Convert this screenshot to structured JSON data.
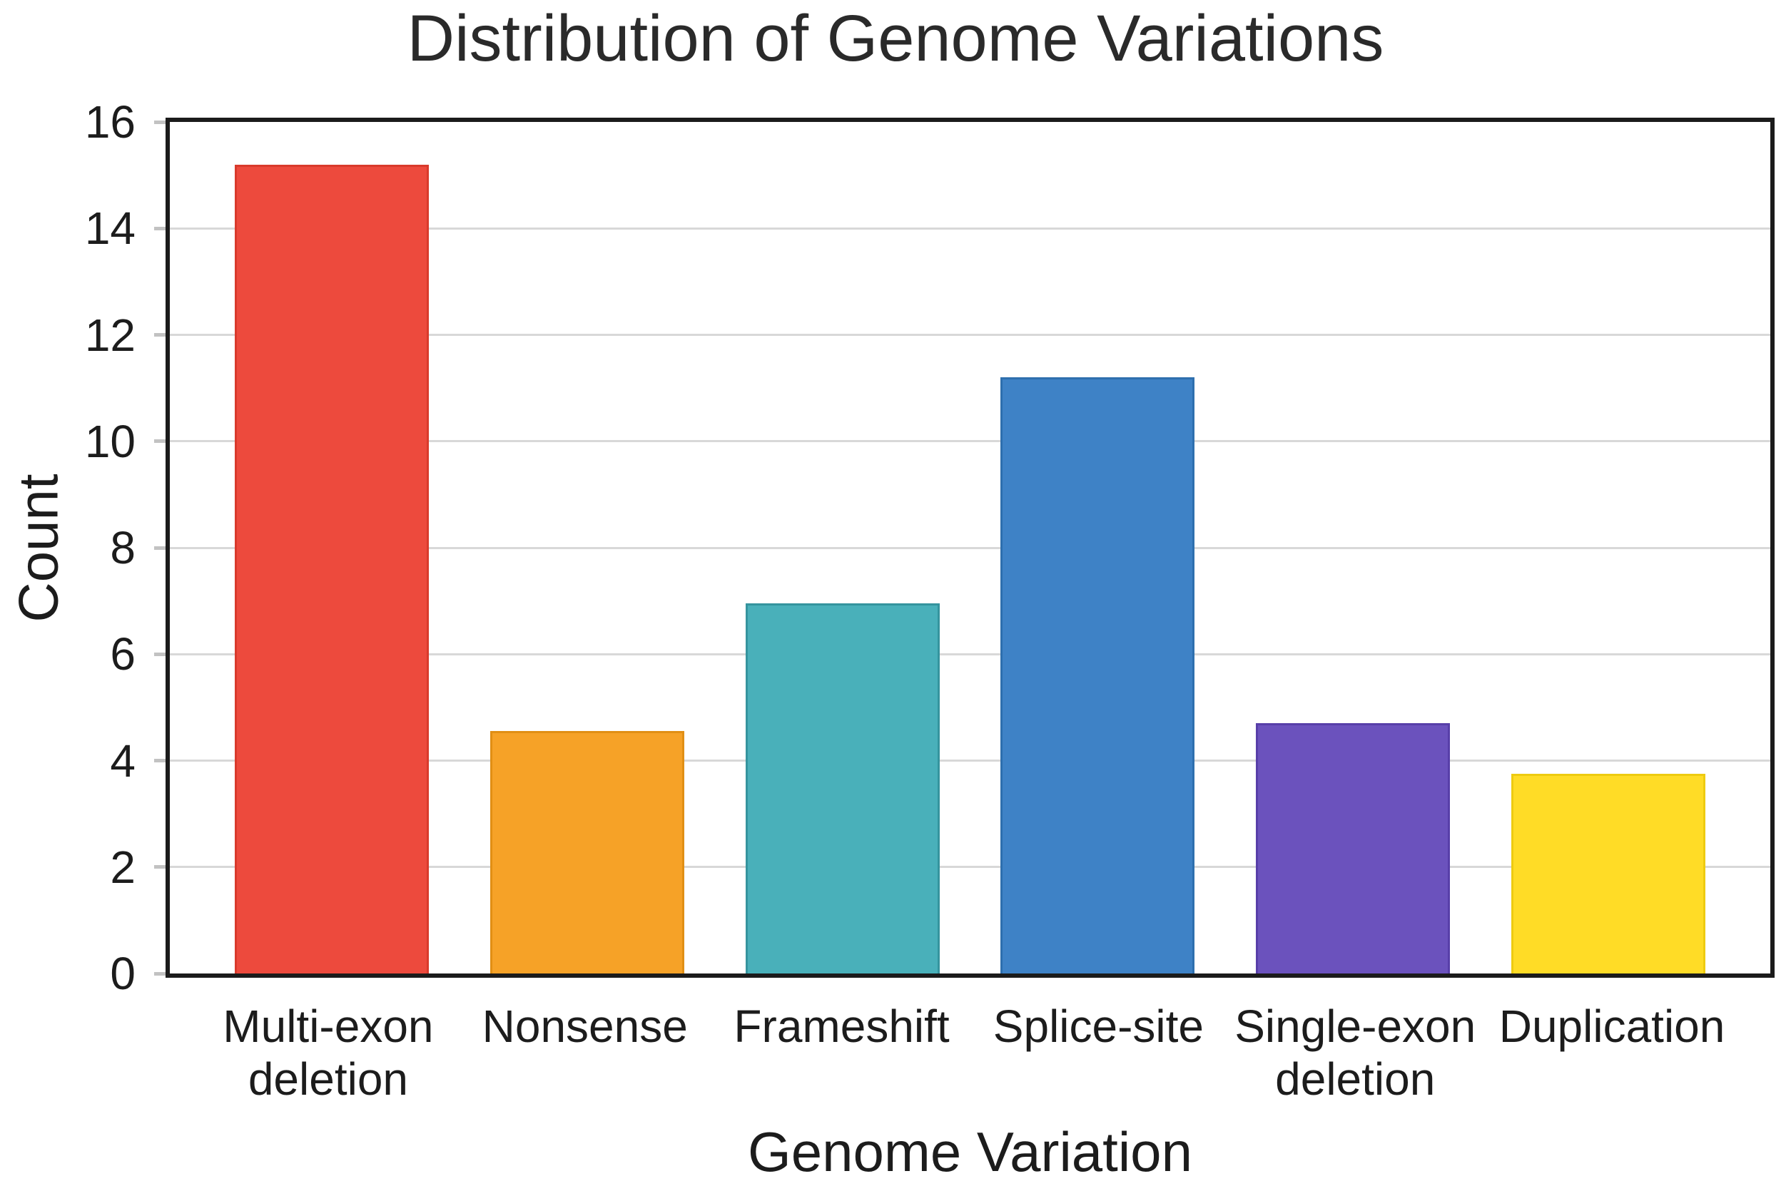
{
  "title": "Distribution of Genome Variations",
  "y_axis": {
    "label": "Count",
    "ticks": [
      0,
      2,
      4,
      6,
      8,
      10,
      12,
      14,
      16
    ],
    "grid_values": [
      2,
      4,
      6,
      8,
      10,
      12,
      14
    ],
    "max": 16
  },
  "x_axis": {
    "label": "Genome Variation"
  },
  "chart_data": {
    "type": "bar",
    "title": "Distribution of Genome Variations",
    "xlabel": "Genome Variation",
    "ylabel": "Count",
    "ylim": [
      0,
      16
    ],
    "grid": "horizontal",
    "legend": "none",
    "categories": [
      "Multi-exon\ndeletion",
      "Nonsense",
      "Frameshift",
      "Splice-site",
      "Single-exon\ndeletion",
      "Duplication"
    ],
    "values": [
      15.2,
      4.55,
      6.95,
      11.2,
      4.7,
      3.75
    ],
    "bar_colors": [
      "#ed4a3d",
      "#f6a227",
      "#49b0ba",
      "#3e82c6",
      "#6b52bd",
      "#ffdc26"
    ],
    "bar_edge_colors": [
      "#d93a2c",
      "#e18f15",
      "#35949e",
      "#2e6fae",
      "#583fa9",
      "#eecb10"
    ]
  },
  "style": {
    "axis_color": "#1b1b1b",
    "grid_color": "#d8d8d8",
    "tick_mark_color": "#c2c2c2",
    "text_color": "#1c1c1c",
    "background": "#ffffff"
  }
}
